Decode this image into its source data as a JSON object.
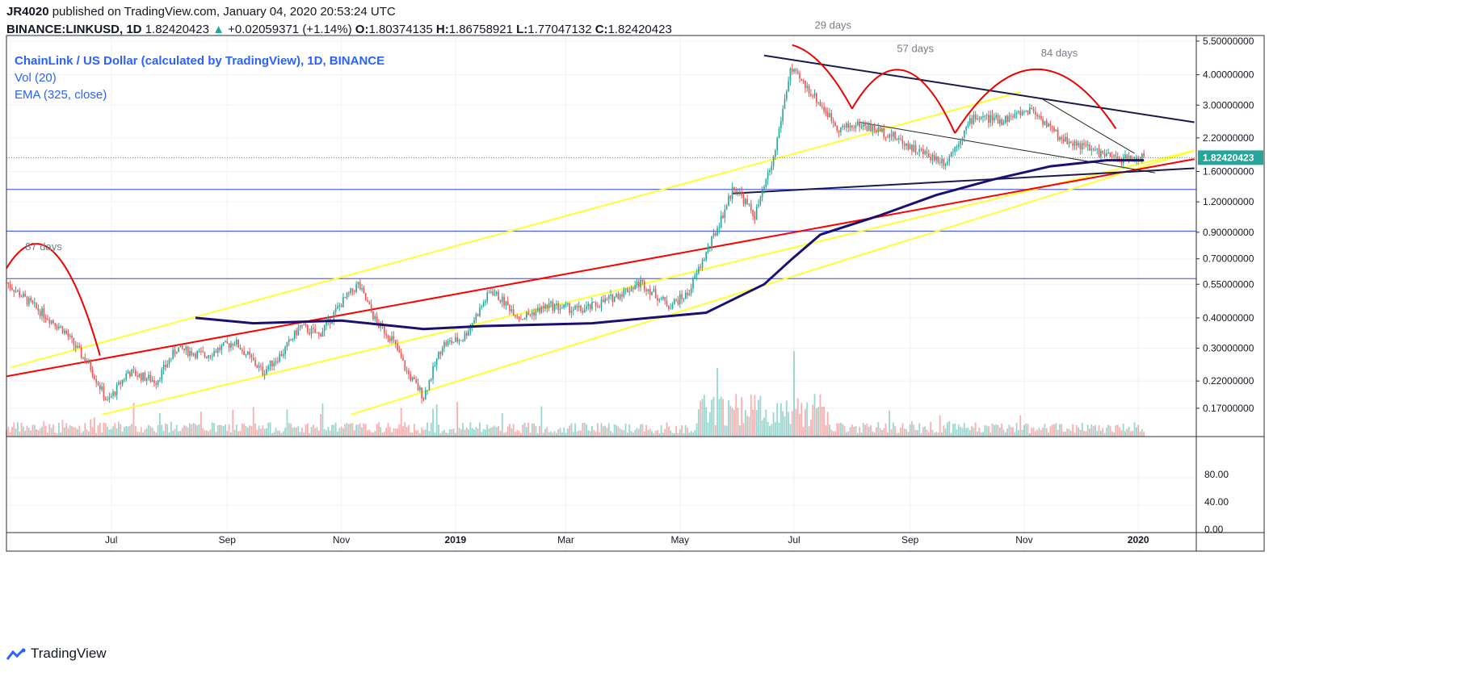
{
  "header": {
    "publish_line_user": "JR4020",
    "publish_line_rest": " published on TradingView.com, January 04, 2020 20:53:24 UTC",
    "symbol": "BINANCE:LINKUSD, 1D",
    "last": "1.82420423",
    "change": "+0.02059371 (+1.14%)",
    "o_label": "O:",
    "o_value": "1.80374135",
    "h_label": "H:",
    "h_value": "1.86758921",
    "l_label": "L:",
    "l_value": "1.77047132",
    "c_label": "C:",
    "c_value": "1.82420423"
  },
  "legend": {
    "title": "ChainLink / US Dollar (calculated by TradingView), 1D, BINANCE",
    "vol": "Vol (20)",
    "ema": "EMA (325, close)"
  },
  "annotations": {
    "days_87": "87 days",
    "days_29": "29 days",
    "days_57": "57 days",
    "days_84": "84 days"
  },
  "brand": "TradingView",
  "colors": {
    "up": "#26a69a",
    "down": "#ef5350",
    "ema": "#1a1070",
    "channel": "#ffff33",
    "trend_red": "#ff0000",
    "hline": "#3340ee",
    "price_tag": "#26a69a"
  },
  "chart_data": {
    "type": "candlestick",
    "scale": "log",
    "y_ticks": [
      "5.50000000",
      "4.00000000",
      "3.00000000",
      "2.20000000",
      "1.60000000",
      "1.20000000",
      "0.90000000",
      "0.70000000",
      "0.55000000",
      "0.40000000",
      "0.30000000",
      "0.22000000",
      "0.17000000"
    ],
    "y_range": [
      0.13,
      5.8
    ],
    "last_price_label": "1.82420423",
    "oscillator_ticks": [
      "80.00",
      "40.00",
      "0.00"
    ],
    "x_ticks": [
      {
        "label": "Jul",
        "date": "2018-07-01",
        "bold": false
      },
      {
        "label": "Sep",
        "date": "2018-09-01",
        "bold": false
      },
      {
        "label": "Nov",
        "date": "2018-11-01",
        "bold": false
      },
      {
        "label": "2019",
        "date": "2019-01-01",
        "bold": true
      },
      {
        "label": "Mar",
        "date": "2019-03-01",
        "bold": false
      },
      {
        "label": "May",
        "date": "2019-05-01",
        "bold": false
      },
      {
        "label": "Jul",
        "date": "2019-07-01",
        "bold": false
      },
      {
        "label": "Sep",
        "date": "2019-09-01",
        "bold": false
      },
      {
        "label": "Nov",
        "date": "2019-11-01",
        "bold": false
      },
      {
        "label": "2020",
        "date": "2020-01-01",
        "bold": true
      }
    ],
    "x_range": [
      "2018-05-06",
      "2020-02-01"
    ],
    "price_path": [
      [
        "2018-05-06",
        0.56
      ],
      [
        "2018-05-20",
        0.45
      ],
      [
        "2018-06-05",
        0.36
      ],
      [
        "2018-06-20",
        0.25
      ],
      [
        "2018-06-29",
        0.18
      ],
      [
        "2018-07-10",
        0.24
      ],
      [
        "2018-07-25",
        0.22
      ],
      [
        "2018-08-05",
        0.3
      ],
      [
        "2018-08-20",
        0.28
      ],
      [
        "2018-09-05",
        0.32
      ],
      [
        "2018-09-20",
        0.24
      ],
      [
        "2018-10-01",
        0.29
      ],
      [
        "2018-10-10",
        0.37
      ],
      [
        "2018-10-20",
        0.34
      ],
      [
        "2018-11-01",
        0.46
      ],
      [
        "2018-11-10",
        0.55
      ],
      [
        "2018-11-20",
        0.38
      ],
      [
        "2018-11-28",
        0.33
      ],
      [
        "2018-12-06",
        0.24
      ],
      [
        "2018-12-15",
        0.19
      ],
      [
        "2018-12-25",
        0.31
      ],
      [
        "2019-01-05",
        0.33
      ],
      [
        "2019-01-20",
        0.52
      ],
      [
        "2019-02-05",
        0.4
      ],
      [
        "2019-02-20",
        0.45
      ],
      [
        "2019-03-10",
        0.43
      ],
      [
        "2019-03-25",
        0.48
      ],
      [
        "2019-04-10",
        0.56
      ],
      [
        "2019-04-25",
        0.45
      ],
      [
        "2019-05-05",
        0.5
      ],
      [
        "2019-05-20",
        0.9
      ],
      [
        "2019-05-30",
        1.4
      ],
      [
        "2019-06-10",
        1.05
      ],
      [
        "2019-06-20",
        1.8
      ],
      [
        "2019-06-29",
        4.2
      ],
      [
        "2019-07-10",
        3.4
      ],
      [
        "2019-07-25",
        2.4
      ],
      [
        "2019-08-05",
        2.5
      ],
      [
        "2019-08-20",
        2.3
      ],
      [
        "2019-09-05",
        1.95
      ],
      [
        "2019-09-20",
        1.75
      ],
      [
        "2019-10-05",
        2.7
      ],
      [
        "2019-10-20",
        2.6
      ],
      [
        "2019-11-05",
        2.9
      ],
      [
        "2019-11-20",
        2.2
      ],
      [
        "2019-12-05",
        2.0
      ],
      [
        "2019-12-20",
        1.8
      ],
      [
        "2020-01-04",
        1.82
      ]
    ],
    "ema_path": [
      [
        "2018-08-15",
        0.4
      ],
      [
        "2018-09-15",
        0.38
      ],
      [
        "2018-11-01",
        0.39
      ],
      [
        "2018-12-15",
        0.36
      ],
      [
        "2019-01-15",
        0.37
      ],
      [
        "2019-03-15",
        0.38
      ],
      [
        "2019-04-15",
        0.4
      ],
      [
        "2019-05-15",
        0.42
      ],
      [
        "2019-06-15",
        0.55
      ],
      [
        "2019-06-30",
        0.7
      ],
      [
        "2019-07-15",
        0.88
      ],
      [
        "2019-08-15",
        1.05
      ],
      [
        "2019-09-15",
        1.28
      ],
      [
        "2019-10-15",
        1.48
      ],
      [
        "2019-11-15",
        1.68
      ],
      [
        "2019-12-15",
        1.78
      ],
      [
        "2020-01-04",
        1.78
      ]
    ],
    "lines": {
      "channel_upper": [
        [
          "2018-05-08",
          0.25
        ],
        [
          "2019-10-30",
          3.4
        ]
      ],
      "channel_mid": [
        [
          "2018-06-26",
          0.16
        ],
        [
          "2020-01-31",
          1.95
        ]
      ],
      "channel_lower": [
        [
          "2018-11-06",
          0.16
        ],
        [
          "2020-01-31",
          1.95
        ]
      ],
      "red_trend": [
        [
          "2018-05-06",
          0.23
        ],
        [
          "2020-01-31",
          1.8
        ]
      ],
      "hlines": [
        1.35,
        0.91,
        0.58
      ],
      "black_top": [
        [
          "2019-06-15",
          4.8
        ],
        [
          "2020-01-31",
          2.55
        ]
      ],
      "black_support": [
        [
          "2019-05-29",
          1.3
        ],
        [
          "2020-01-31",
          1.65
        ]
      ],
      "black_wedge_upper": [
        [
          "2019-11-10",
          3.2
        ],
        [
          "2019-12-30",
          1.9
        ]
      ],
      "black_wedge_lower": [
        [
          "2019-08-05",
          2.55
        ],
        [
          "2020-01-10",
          1.58
        ]
      ]
    }
  }
}
